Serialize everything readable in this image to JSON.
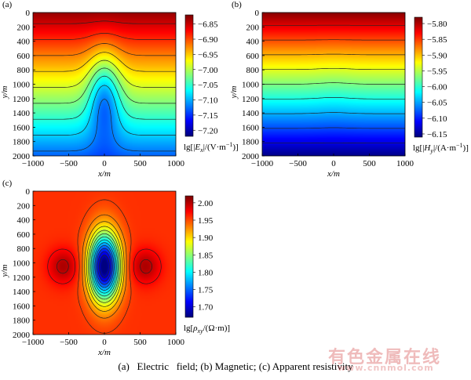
{
  "caption": "(a)   Electric   field; (b) Magnetic; (c) Apparent resistivity",
  "watermark": {
    "text": "有色金属在线",
    "url": "www.cnnmol.com"
  },
  "chart_data": [
    {
      "panel": "(a)",
      "type": "heatmap",
      "xlabel": "x/m",
      "ylabel": "y/m",
      "xlim": [
        -1000,
        1000
      ],
      "ylim": [
        0,
        2000
      ],
      "y_inverted": true,
      "x_ticks": [
        "−1000",
        "−500",
        "0",
        "500",
        "1000"
      ],
      "y_ticks": [
        "0",
        "200",
        "400",
        "600",
        "800",
        "1000",
        "1200",
        "1400",
        "1600",
        "1800",
        "2000"
      ],
      "colorbar": {
        "label": "lg[|Ex|/(V·m⁻¹)]",
        "label_parts": [
          "lg[|",
          "E",
          "x",
          "|/(V·m",
          "−1",
          ")]"
        ],
        "range": [
          -7.22,
          -6.82
        ],
        "ticks": [
          -6.85,
          -6.9,
          -6.95,
          -7.0,
          -7.05,
          -7.1,
          -7.15,
          -7.2
        ],
        "tick_labels": [
          "−6.85",
          "−6.90",
          "−6.95",
          "−7.00",
          "−7.05",
          "−7.10",
          "−7.15",
          "−7.20"
        ]
      },
      "field": {
        "surface": -6.83,
        "depth_gradient": -0.3,
        "anomaly_amp": -0.11,
        "anomaly_center": [
          0,
          1150
        ],
        "anomaly_sigma": [
          160,
          420
        ]
      },
      "contours": 12,
      "grid": false
    },
    {
      "panel": "(b)",
      "type": "heatmap",
      "xlabel": "x/m",
      "ylabel": "y/m",
      "xlim": [
        -1000,
        1000
      ],
      "ylim": [
        0,
        2000
      ],
      "y_inverted": true,
      "x_ticks": [
        "−1000",
        "−500",
        "0",
        "500",
        "1000"
      ],
      "y_ticks": [
        "0",
        "200",
        "400",
        "600",
        "800",
        "1000",
        "1200",
        "1400",
        "1600",
        "1800",
        "2000"
      ],
      "colorbar": {
        "label": "lg[|Hy|/(A·m⁻¹)]",
        "label_parts": [
          "lg[|",
          "H",
          "y",
          "|/(A·m",
          "−1",
          ")]"
        ],
        "range": [
          -6.16,
          -5.78
        ],
        "ticks": [
          -5.8,
          -5.85,
          -5.9,
          -5.95,
          -6.0,
          -6.05,
          -6.1,
          -6.15
        ],
        "tick_labels": [
          "−5.80",
          "−5.85",
          "−5.90",
          "−5.95",
          "−6.00",
          "−6.05",
          "−6.10",
          "−6.15"
        ]
      },
      "field": {
        "surface": -5.785,
        "depth_gradient": -0.37,
        "anomaly_amp": -0.004,
        "anomaly_center": [
          0,
          1100
        ],
        "anomaly_sigma": [
          200,
          400
        ]
      },
      "contours": 10,
      "grid": false
    },
    {
      "panel": "(c)",
      "type": "heatmap",
      "xlabel": "x/m",
      "ylabel": "y/m",
      "xlim": [
        -1000,
        1000
      ],
      "ylim": [
        0,
        2000
      ],
      "y_inverted": true,
      "x_ticks": [
        "−1000",
        "−500",
        "0",
        "500",
        "1000"
      ],
      "y_ticks": [
        "0",
        "200",
        "400",
        "600",
        "800",
        "1000",
        "1200",
        "1400",
        "1600",
        "1800",
        "2000"
      ],
      "colorbar": {
        "label": "lg[ρxy/(Ω·m)]",
        "label_parts": [
          "lg[",
          "ρ",
          "xy",
          "/(Ω·m)]"
        ],
        "range": [
          1.67,
          2.02
        ],
        "ticks": [
          2.0,
          1.95,
          1.9,
          1.85,
          1.8,
          1.75,
          1.7
        ],
        "tick_labels": [
          "2.00",
          "1.95",
          "1.90",
          "1.85",
          "1.80",
          "1.75",
          "1.70"
        ]
      },
      "field": {
        "background": 1.96,
        "anomaly_amp": -0.3,
        "anomaly_center": [
          0,
          1050
        ],
        "anomaly_sigma": [
          150,
          330
        ],
        "side_amp": 0.045,
        "side_centers": [
          [
            -580,
            1050
          ],
          [
            580,
            1050
          ]
        ],
        "side_sigma": [
          150,
          170
        ]
      },
      "contours": 16,
      "grid": false
    }
  ]
}
